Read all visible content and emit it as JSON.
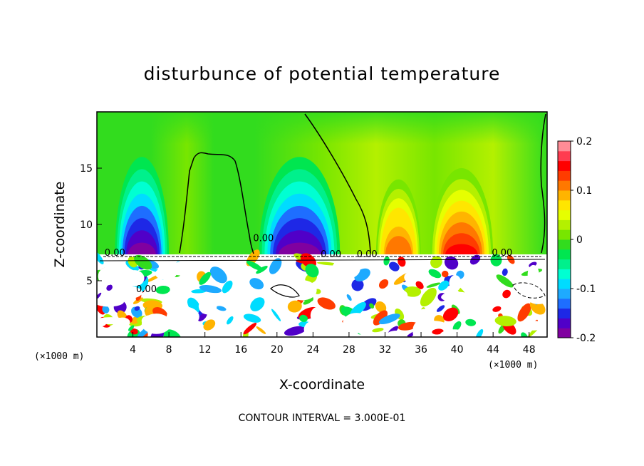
{
  "chart_data": {
    "type": "heatmap",
    "title": "disturbunce of potential temperature",
    "xlabel": "X-coordinate",
    "ylabel": "Z-coordinate",
    "x_unit": "(×1000 m)",
    "x_unit_right": "(×1000 m)",
    "xlim": [
      0,
      50
    ],
    "ylim": [
      0,
      20
    ],
    "x_ticks": [
      4,
      8,
      12,
      16,
      20,
      24,
      28,
      32,
      36,
      40,
      44,
      48
    ],
    "y_ticks": [
      5,
      10,
      15
    ],
    "contour_interval_text": "CONTOUR INTERVAL = 3.000E-01",
    "contour_label": "0.00",
    "colorbar": {
      "range": [
        -0.2,
        0.2
      ],
      "ticks": [
        "0.2",
        "0.1",
        "0",
        "-0.1",
        "-0.2"
      ],
      "tick_values": [
        0.2,
        0.1,
        0,
        -0.1,
        -0.2
      ],
      "colors": [
        "#8000a0",
        "#5000c8",
        "#1e28e6",
        "#1e6eff",
        "#1eaaff",
        "#00dcff",
        "#00ffd2",
        "#00f08c",
        "#00e650",
        "#32dc1e",
        "#78e600",
        "#b4f000",
        "#e6ff00",
        "#ffe600",
        "#ffb400",
        "#ff7800",
        "#ff3c00",
        "#ff0000",
        "#ff3c50",
        "#ff8c96"
      ]
    },
    "upper_layer_features": [
      {
        "x_range": [
          2,
          8
        ],
        "peak_z": 12,
        "value": -0.2
      },
      {
        "x_range": [
          18,
          27
        ],
        "peak_z": 12,
        "value": -0.2
      },
      {
        "x_range": [
          31,
          36
        ],
        "peak_z": 10,
        "value": 0.12
      },
      {
        "x_range": [
          37,
          44
        ],
        "peak_z": 11,
        "value": 0.14
      }
    ]
  }
}
